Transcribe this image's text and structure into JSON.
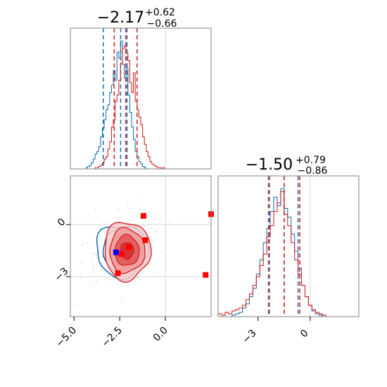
{
  "chart_data": [
    {
      "type": "histogram",
      "panel": "top-left",
      "variable_index": 0,
      "title_main": "−2.17",
      "title_sup": "+0.62",
      "title_sub": "−0.66",
      "xlim": [
        -5.2,
        2.5
      ],
      "series": [
        {
          "name": "blue",
          "color": "#1f77b4",
          "quantiles": [
            -3.4,
            -2.45,
            -2.1
          ],
          "bins": [
            -4.3,
            -4.2,
            -4.1,
            -4.0,
            -3.9,
            -3.8,
            -3.7,
            -3.6,
            -3.5,
            -3.4,
            -3.3,
            -3.2,
            -3.1,
            -3.0,
            -2.9,
            -2.8,
            -2.7,
            -2.6,
            -2.5,
            -2.4,
            -2.3,
            -2.2,
            -2.1,
            -2.0,
            -1.9,
            -1.8,
            -1.7,
            -1.6,
            -1.5,
            -1.4,
            -1.3,
            -1.2,
            -1.1
          ],
          "counts": [
            1,
            2,
            3,
            5,
            8,
            12,
            14,
            18,
            26,
            33,
            40,
            48,
            52,
            62,
            68,
            80,
            72,
            95,
            90,
            104,
            85,
            74,
            82,
            60,
            46,
            34,
            24,
            14,
            10,
            6,
            4,
            2,
            1
          ]
        },
        {
          "name": "red",
          "color": "#d62728",
          "quantiles": [
            -2.8,
            -2.17,
            -1.55
          ],
          "bins": [
            -3.8,
            -3.7,
            -3.6,
            -3.5,
            -3.4,
            -3.3,
            -3.2,
            -3.1,
            -3.0,
            -2.9,
            -2.8,
            -2.7,
            -2.6,
            -2.5,
            -2.4,
            -2.3,
            -2.2,
            -2.1,
            -2.0,
            -1.9,
            -1.8,
            -1.7,
            -1.6,
            -1.5,
            -1.4,
            -1.3,
            -1.2,
            -1.1,
            -1.0,
            -0.9,
            -0.8,
            -0.7,
            -0.6,
            -0.5,
            -0.4,
            -0.3,
            -0.2,
            -0.1,
            0.0
          ],
          "counts": [
            1,
            1,
            2,
            3,
            5,
            8,
            10,
            16,
            22,
            34,
            40,
            55,
            60,
            72,
            86,
            98,
            100,
            94,
            88,
            70,
            62,
            78,
            55,
            48,
            42,
            36,
            26,
            20,
            14,
            10,
            6,
            4,
            3,
            2,
            1,
            1,
            0,
            1,
            0
          ]
        }
      ]
    },
    {
      "type": "contour",
      "panel": "bottom-left",
      "xlim": [
        -5.2,
        2.5
      ],
      "ylim": [
        -5.3,
        2.8
      ],
      "x_ticks": [
        "−5.0",
        "−2.5",
        "0.0"
      ],
      "x_tick_values": [
        -5.0,
        -2.5,
        0.0
      ],
      "y_ticks": [
        "0",
        "−3"
      ],
      "y_tick_values": [
        0,
        -3
      ],
      "series": [
        {
          "name": "blue",
          "color": "#1f77b4",
          "center": [
            -2.4,
            -1.5
          ],
          "sigma": [
            0.7,
            0.75
          ],
          "square_points": [
            [
              -2.7,
              -1.6
            ]
          ]
        },
        {
          "name": "red",
          "color": "#d62728",
          "center": [
            -2.1,
            -1.5
          ],
          "sigma": [
            0.6,
            0.8
          ],
          "square_points": [
            [
              -1.2,
              0.5
            ],
            [
              2.5,
              0.6
            ],
            [
              -1.1,
              -0.9
            ],
            [
              -2.0,
              -1.3
            ],
            [
              -2.4,
              -1.7
            ],
            [
              -2.6,
              -2.8
            ],
            [
              2.2,
              -2.9
            ]
          ]
        }
      ]
    },
    {
      "type": "histogram",
      "panel": "bottom-right",
      "variable_index": 1,
      "title_main": "−1.50",
      "title_sup": "+0.79",
      "title_sub": "−0.86",
      "xlim": [
        -5.3,
        2.8
      ],
      "x_ticks": [
        "−3",
        "0"
      ],
      "x_tick_values": [
        -3,
        0
      ],
      "series": [
        {
          "name": "blue",
          "color": "#1f77b4",
          "quantiles": [
            -2.35,
            -1.5,
            -0.7
          ],
          "bins": [
            -4.4,
            -4.2,
            -4.0,
            -3.8,
            -3.6,
            -3.4,
            -3.2,
            -3.0,
            -2.8,
            -2.6,
            -2.4,
            -2.2,
            -2.0,
            -1.8,
            -1.6,
            -1.4,
            -1.2,
            -1.0,
            -0.8,
            -0.6,
            -0.4,
            -0.2,
            0.0,
            0.2,
            0.4,
            0.6
          ],
          "counts": [
            1,
            2,
            3,
            6,
            9,
            14,
            20,
            30,
            40,
            52,
            62,
            74,
            84,
            78,
            90,
            76,
            70,
            58,
            46,
            34,
            22,
            14,
            8,
            4,
            2,
            1
          ]
        },
        {
          "name": "red",
          "color": "#d62728",
          "quantiles": [
            -2.4,
            -1.5,
            -0.6
          ],
          "bins": [
            -5.2,
            -5.0,
            -4.8,
            -4.6,
            -4.4,
            -4.2,
            -4.0,
            -3.8,
            -3.6,
            -3.4,
            -3.2,
            -3.0,
            -2.8,
            -2.6,
            -2.4,
            -2.2,
            -2.0,
            -1.8,
            -1.6,
            -1.4,
            -1.2,
            -1.0,
            -0.8,
            -0.6,
            -0.4,
            -0.2,
            0.0,
            0.2,
            0.4,
            0.6,
            0.8
          ],
          "counts": [
            2,
            1,
            3,
            2,
            4,
            5,
            6,
            8,
            12,
            16,
            22,
            28,
            36,
            44,
            56,
            64,
            74,
            80,
            88,
            72,
            64,
            52,
            40,
            30,
            22,
            14,
            8,
            5,
            3,
            2,
            1
          ]
        }
      ]
    }
  ]
}
